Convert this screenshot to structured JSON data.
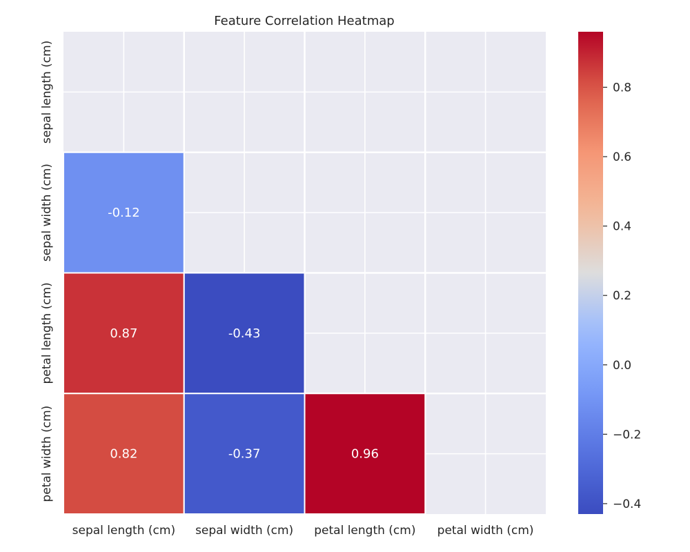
{
  "chart_data": {
    "type": "heatmap",
    "title": "Feature Correlation Heatmap",
    "xlabel": "",
    "ylabel": "",
    "x_categories": [
      "sepal length (cm)",
      "sepal width (cm)",
      "petal length (cm)",
      "petal width (cm)"
    ],
    "y_categories": [
      "sepal length (cm)",
      "sepal width (cm)",
      "petal length (cm)",
      "petal width (cm)"
    ],
    "values": [
      [
        null,
        null,
        null,
        null
      ],
      [
        -0.12,
        null,
        null,
        null
      ],
      [
        0.87,
        -0.43,
        null,
        null
      ],
      [
        0.82,
        -0.37,
        0.96,
        null
      ]
    ],
    "labels": [
      [
        null,
        null,
        null,
        null
      ],
      [
        "-0.12",
        null,
        null,
        null
      ],
      [
        "0.87",
        "-0.43",
        null,
        null
      ],
      [
        "0.82",
        "-0.37",
        "0.96",
        null
      ]
    ],
    "mask": "upper triangle including diagonal",
    "colormap": "coolwarm",
    "colorbar": {
      "range": [
        -0.43,
        0.96
      ],
      "ticks": [
        -0.4,
        -0.2,
        0.0,
        0.2,
        0.4,
        0.6,
        0.8
      ],
      "tick_labels": [
        "−0.4",
        "−0.2",
        "0.0",
        "0.2",
        "0.4",
        "0.6",
        "0.8"
      ]
    },
    "grid": true,
    "legend": "colorbar right"
  },
  "colors": {
    "background": "#ffffff",
    "axes_bg": "#eaeaf2",
    "grid": "#ffffff",
    "cell_border": "#ffffff",
    "cell_text": "#ffffff",
    "text": "#262626"
  }
}
